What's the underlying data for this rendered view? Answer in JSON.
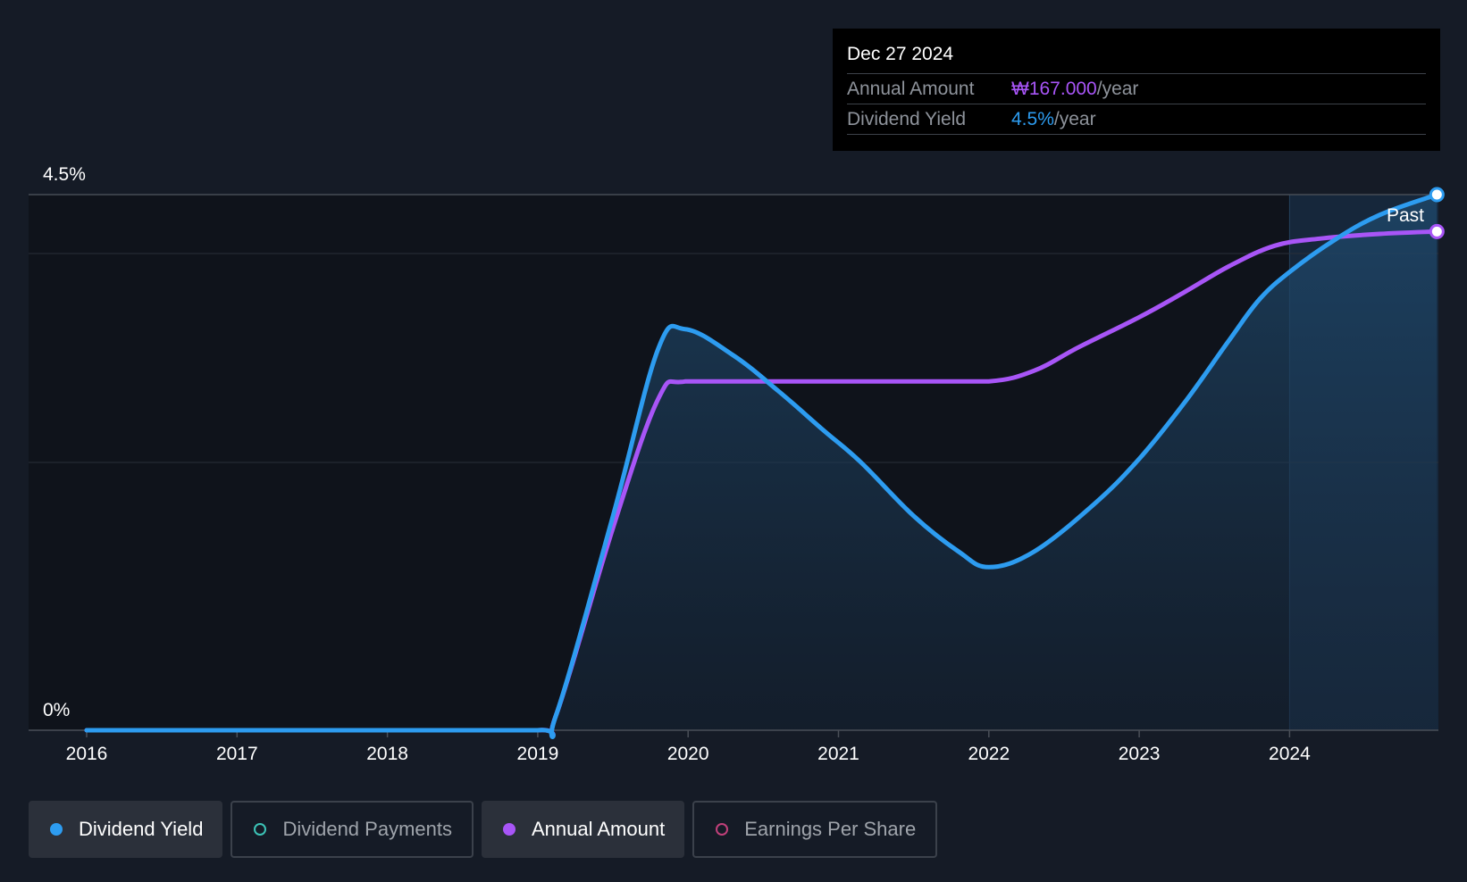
{
  "tooltip": {
    "date": "Dec 27 2024",
    "rows": [
      {
        "label": "Annual Amount",
        "value": "₩167.000",
        "suffix": "/year",
        "color": "#a855f7"
      },
      {
        "label": "Dividend Yield",
        "value": "4.5%",
        "suffix": "/year",
        "color": "#2d9cf0"
      }
    ]
  },
  "legend": [
    {
      "label": "Dividend Yield",
      "color": "#2d9cf0",
      "active": true
    },
    {
      "label": "Dividend Payments",
      "color": "#3cc3b6",
      "active": false
    },
    {
      "label": "Annual Amount",
      "color": "#a855f7",
      "active": true
    },
    {
      "label": "Earnings Per Share",
      "color": "#c0407a",
      "active": false
    }
  ],
  "chart_data": {
    "type": "line",
    "x_ticks": [
      "2016",
      "2017",
      "2018",
      "2019",
      "2020",
      "2021",
      "2022",
      "2023",
      "2024"
    ],
    "y_tick_labels": [
      "0%",
      "4.5%"
    ],
    "ylim": [
      0,
      4.5
    ],
    "xlim": [
      2015.62,
      2024.99
    ],
    "grid": true,
    "past_label": "Past",
    "series": [
      {
        "name": "Dividend Yield",
        "color": "#2d9cf0",
        "unit": "%",
        "points": [
          [
            2016.0,
            0
          ],
          [
            2017.0,
            0
          ],
          [
            2018.0,
            0
          ],
          [
            2019.0,
            0
          ],
          [
            2019.12,
            0.12
          ],
          [
            2019.5,
            1.8
          ],
          [
            2019.8,
            3.2
          ],
          [
            2019.98,
            3.37
          ],
          [
            2020.3,
            3.15
          ],
          [
            2020.6,
            2.85
          ],
          [
            2020.9,
            2.52
          ],
          [
            2021.15,
            2.25
          ],
          [
            2021.5,
            1.8
          ],
          [
            2021.8,
            1.5
          ],
          [
            2022.0,
            1.37
          ],
          [
            2022.3,
            1.5
          ],
          [
            2022.7,
            1.9
          ],
          [
            2023.0,
            2.28
          ],
          [
            2023.3,
            2.75
          ],
          [
            2023.6,
            3.28
          ],
          [
            2023.8,
            3.62
          ],
          [
            2024.0,
            3.85
          ],
          [
            2024.3,
            4.12
          ],
          [
            2024.6,
            4.33
          ],
          [
            2024.98,
            4.5
          ]
        ]
      },
      {
        "name": "Annual Amount",
        "color": "#a855f7",
        "unit": "₩",
        "points": [
          [
            2016.0,
            0
          ],
          [
            2017.0,
            0
          ],
          [
            2018.0,
            0
          ],
          [
            2019.0,
            0
          ],
          [
            2019.12,
            0.12
          ],
          [
            2019.5,
            1.7
          ],
          [
            2019.8,
            2.78
          ],
          [
            2019.98,
            2.93
          ],
          [
            2020.5,
            2.93
          ],
          [
            2021.0,
            2.93
          ],
          [
            2021.5,
            2.93
          ],
          [
            2022.0,
            2.93
          ],
          [
            2022.3,
            3.02
          ],
          [
            2022.6,
            3.22
          ],
          [
            2023.0,
            3.47
          ],
          [
            2023.3,
            3.68
          ],
          [
            2023.6,
            3.9
          ],
          [
            2023.9,
            4.07
          ],
          [
            2024.2,
            4.13
          ],
          [
            2024.6,
            4.17
          ],
          [
            2024.98,
            4.19
          ]
        ]
      }
    ]
  }
}
